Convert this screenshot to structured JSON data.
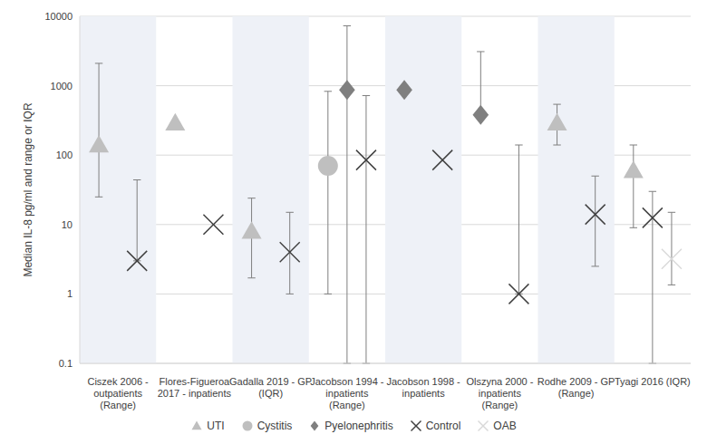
{
  "chart_data": {
    "type": "scatter",
    "y_label": "Median IL-8 pg/ml and range or IQR",
    "categories": [
      "Ciszek 2006 - outpatients (Range)",
      "Flores-Figueroa 2017 - inpatients",
      "Gadalla 2019 - GP (IQR)",
      "Jacobson 1994 - inpatients (Range)",
      "Jacobson 1998 - inpatients",
      "Olszyna 2000 - inpatients (Range)",
      "Rodhe 2009 - GP (Range)",
      "Tyagi 2016 (IQR)"
    ],
    "ylim": [
      0.1,
      10000
    ],
    "yticks": [
      0.1,
      1,
      10,
      100,
      1000,
      10000
    ],
    "log": "y",
    "grid": true,
    "legend": "bottom",
    "series": [
      {
        "name": "UTI",
        "color": "#bfbfbf",
        "marker": "triangle",
        "values": [
          140,
          290,
          8,
          null,
          null,
          null,
          290,
          60
        ],
        "low": [
          25,
          null,
          1.7,
          null,
          null,
          null,
          140,
          9
        ],
        "high": [
          2100,
          null,
          24,
          null,
          null,
          null,
          540,
          140
        ]
      },
      {
        "name": "Cystitis",
        "color": "#bfbfbf",
        "marker": "circle",
        "values": [
          null,
          null,
          null,
          70,
          null,
          null,
          null,
          null
        ],
        "low": [
          null,
          null,
          null,
          1,
          null,
          null,
          null,
          null
        ],
        "high": [
          null,
          null,
          null,
          830,
          null,
          null,
          null,
          null
        ]
      },
      {
        "name": "Pyelonephritis",
        "color": "#7f7f7f",
        "marker": "diamond",
        "values": [
          null,
          null,
          null,
          870,
          870,
          380,
          null,
          null
        ],
        "low": [
          null,
          null,
          null,
          0.1,
          null,
          380,
          null,
          null
        ],
        "high": [
          null,
          null,
          null,
          7300,
          null,
          3100,
          null,
          null
        ]
      },
      {
        "name": "Control",
        "color": "#404040",
        "marker": "x",
        "values": [
          3,
          10,
          4,
          85,
          85,
          1,
          14,
          12.5
        ],
        "low": [
          3,
          null,
          1,
          0.1,
          null,
          1,
          2.5,
          0.1
        ],
        "high": [
          44,
          null,
          15,
          720,
          null,
          140,
          50,
          30
        ]
      },
      {
        "name": "OAB",
        "color": "#d9d9d9",
        "marker": "x",
        "values": [
          null,
          null,
          null,
          null,
          null,
          null,
          null,
          3.2
        ],
        "low": [
          null,
          null,
          null,
          null,
          null,
          null,
          null,
          1.35
        ],
        "high": [
          null,
          null,
          null,
          null,
          null,
          null,
          null,
          15
        ]
      }
    ]
  }
}
